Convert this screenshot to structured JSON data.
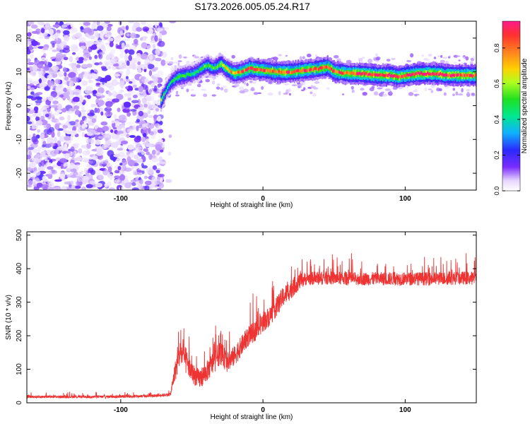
{
  "title": "S173.2026.005.05.24.R17",
  "chart_data": [
    {
      "type": "heatmap",
      "title": "S173.2026.005.05.24.R17",
      "xlabel": "Height of straight line (km)",
      "ylabel": "Frequency (Hz)",
      "xlim": [
        -166,
        150
      ],
      "ylim": [
        -25,
        25
      ],
      "xticks": [
        -100,
        0,
        100
      ],
      "yticks": [
        -20,
        -10,
        0,
        10,
        20
      ],
      "noise_region_x": [
        -166,
        -70
      ],
      "ridge": {
        "x": [
          -72,
          -68,
          -65,
          -60,
          -55,
          -50,
          -45,
          -40,
          -35,
          -30,
          -25,
          -20,
          -15,
          -10,
          0,
          10,
          20,
          30,
          40,
          45,
          50,
          60,
          70,
          80,
          90,
          95,
          100,
          110,
          120,
          130,
          140,
          150
        ],
        "freq_hz": [
          1.5,
          5,
          7,
          8.5,
          9,
          9.5,
          10.5,
          12,
          11,
          12.5,
          10.5,
          9.5,
          10,
          11,
          10.5,
          10,
          10,
          10.5,
          11,
          11.5,
          10,
          9.5,
          9.5,
          9,
          9,
          8.5,
          9,
          9.5,
          9.5,
          9,
          9,
          9
        ],
        "amplitude": [
          0.55,
          0.4,
          0.45,
          0.5,
          0.5,
          0.45,
          0.45,
          0.55,
          0.5,
          0.6,
          0.7,
          0.75,
          0.8,
          0.85,
          0.85,
          0.85,
          0.85,
          0.85,
          0.85,
          0.85,
          0.85,
          0.85,
          0.9,
          0.92,
          0.93,
          0.88,
          0.9,
          0.92,
          0.92,
          0.9,
          0.9,
          0.85
        ]
      },
      "colorbar": {
        "label": "Normalized spectral amplitude",
        "range": [
          0,
          0.95
        ],
        "ticks": [
          "0.0",
          "0.2",
          "0.4",
          "0.6",
          "0.8"
        ],
        "tick_values": [
          0,
          0.2,
          0.4,
          0.6,
          0.8
        ]
      }
    },
    {
      "type": "line",
      "title": "",
      "xlabel": "Height of straight line (km)",
      "ylabel": "SNR (10 * v/v)",
      "xlim": [
        -166,
        150
      ],
      "ylim": [
        0,
        510
      ],
      "xticks": [
        -100,
        0,
        100
      ],
      "yticks": [
        0,
        100,
        200,
        300,
        400,
        500
      ],
      "series": [
        {
          "name": "SNR",
          "color": "#ee3333",
          "x": [
            -166,
            -140,
            -110,
            -80,
            -65,
            -62,
            -58,
            -55,
            -50,
            -45,
            -40,
            -35,
            -30,
            -25,
            -20,
            -15,
            -10,
            -5,
            0,
            5,
            10,
            15,
            20,
            25,
            30,
            40,
            50,
            60,
            80,
            100,
            120,
            140,
            150
          ],
          "base": [
            18,
            18,
            18,
            20,
            25,
            90,
            150,
            130,
            90,
            70,
            90,
            120,
            150,
            120,
            140,
            170,
            200,
            215,
            240,
            260,
            290,
            320,
            340,
            360,
            370,
            372,
            372,
            370,
            370,
            370,
            370,
            372,
            372
          ],
          "spread": [
            8,
            8,
            8,
            8,
            10,
            60,
            80,
            80,
            60,
            60,
            60,
            70,
            70,
            60,
            60,
            60,
            60,
            60,
            60,
            60,
            60,
            60,
            60,
            50,
            40,
            40,
            40,
            40,
            40,
            40,
            40,
            40,
            40
          ]
        }
      ]
    }
  ]
}
